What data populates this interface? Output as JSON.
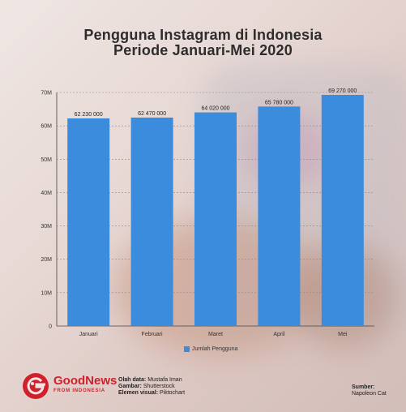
{
  "title_line1": "Pengguna Instagram di Indonesia",
  "title_line2": "Periode Januari-Mei 2020",
  "colors": {
    "bar": "#3b8cdc",
    "brand": "#d0202c"
  },
  "chart_data": {
    "type": "bar",
    "categories": [
      "Januari",
      "Februari",
      "Maret",
      "April",
      "Mei"
    ],
    "series": [
      {
        "name": "Jumlah Pengguna",
        "values": [
          62230000,
          62470000,
          64020000,
          65780000,
          69270000
        ],
        "labels": [
          "62 230 000",
          "62 470 000",
          "64 020 000",
          "65 780 000",
          "69 270 000"
        ]
      }
    ],
    "ylim": [
      0,
      70000000
    ],
    "yticks": [
      0,
      10000000,
      20000000,
      30000000,
      40000000,
      50000000,
      60000000,
      70000000
    ],
    "ytick_labels": [
      "0",
      "10M",
      "20M",
      "30M",
      "40M",
      "50M",
      "60M",
      "70M"
    ],
    "legend": "bottom",
    "grid": true
  },
  "footer": {
    "brand_name": "GoodNews",
    "brand_sub": "FROM INDONESIA",
    "logo_icon": "goodnews-logo-icon",
    "data_label": "Olah data:",
    "data_value": "Mustafa Iman",
    "image_label": "Gambar:",
    "image_value": "Shutterstock",
    "visual_label": "Elemen visual:",
    "visual_value": "Piktochart",
    "source_label": "Sumber:",
    "source_value": "Napoleon Cat"
  }
}
